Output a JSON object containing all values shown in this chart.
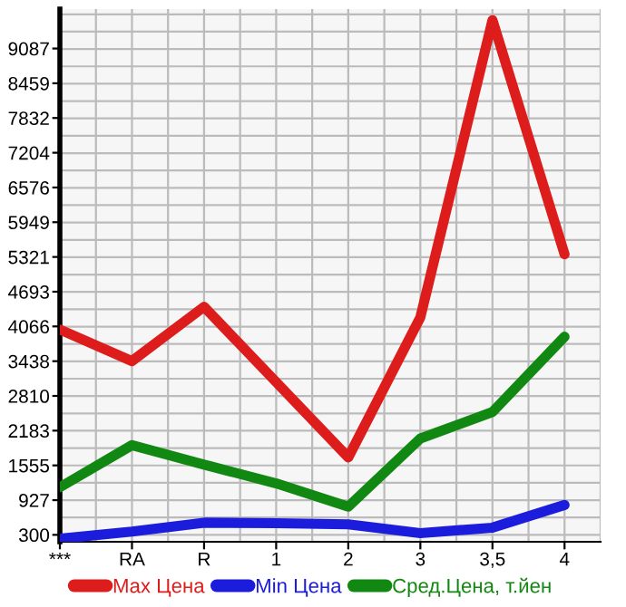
{
  "chart_data": {
    "type": "line",
    "categories": [
      "***",
      "RA",
      "R",
      "1",
      "2",
      "3",
      "3,5",
      "4"
    ],
    "series": [
      {
        "name": "Max Цена",
        "color": "#dd1c1c",
        "values": [
          4010,
          3440,
          4420,
          3060,
          1700,
          4230,
          9600,
          5370
        ]
      },
      {
        "name": "Min Цена",
        "color": "#1c1cdd",
        "values": [
          230,
          360,
          520,
          510,
          490,
          330,
          430,
          840
        ]
      },
      {
        "name": "Сред.Цена, т.йен",
        "color": "#118811",
        "values": [
          1160,
          1920,
          1570,
          1230,
          810,
          2040,
          2520,
          3880
        ]
      }
    ],
    "ylim": [
      175,
      9800
    ],
    "yticks": [
      300,
      927,
      1555,
      2183,
      2810,
      3438,
      4066,
      4693,
      5321,
      5949,
      6576,
      7204,
      7832,
      8459,
      9087
    ],
    "grid": true,
    "legend": "bottom",
    "marker": "none",
    "line_style": "solid"
  }
}
